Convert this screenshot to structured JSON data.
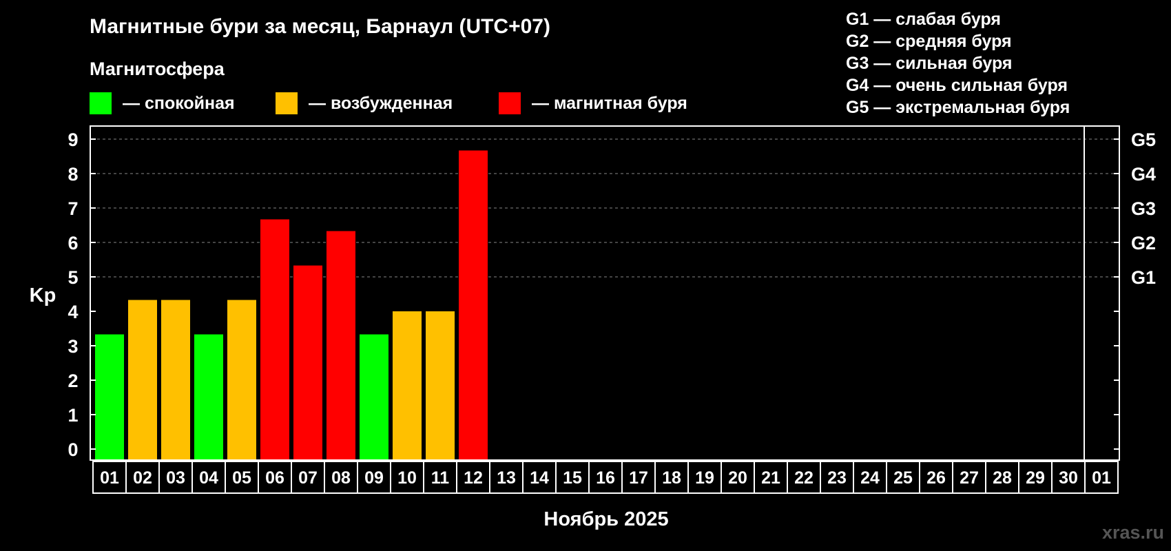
{
  "chart_data": {
    "type": "bar",
    "title": "Магнитные бури за месяц, Барнаул (UTC+07)",
    "xlabel": "Ноябрь 2025",
    "ylabel": "Kp",
    "ylim": [
      0,
      9
    ],
    "yticks": [
      "0",
      "1",
      "2",
      "3",
      "4",
      "5",
      "6",
      "7",
      "8",
      "9"
    ],
    "categories": [
      "01",
      "02",
      "03",
      "04",
      "05",
      "06",
      "07",
      "08",
      "09",
      "10",
      "11",
      "12",
      "13",
      "14",
      "15",
      "16",
      "17",
      "18",
      "19",
      "20",
      "21",
      "22",
      "23",
      "24",
      "25",
      "26",
      "27",
      "28",
      "29",
      "30",
      "01"
    ],
    "values": [
      3.33,
      4.33,
      4.33,
      3.33,
      4.33,
      6.67,
      5.33,
      6.33,
      3.33,
      4.0,
      4.0,
      8.67,
      null,
      null,
      null,
      null,
      null,
      null,
      null,
      null,
      null,
      null,
      null,
      null,
      null,
      null,
      null,
      null,
      null,
      null,
      null
    ],
    "bar_status": [
      "quiet",
      "excited",
      "excited",
      "quiet",
      "excited",
      "storm",
      "storm",
      "storm",
      "quiet",
      "excited",
      "excited",
      "storm",
      null,
      null,
      null,
      null,
      null,
      null,
      null,
      null,
      null,
      null,
      null,
      null,
      null,
      null,
      null,
      null,
      null,
      null,
      null
    ],
    "g_levels": [
      {
        "label": "G1",
        "kp": 5
      },
      {
        "label": "G2",
        "kp": 6
      },
      {
        "label": "G3",
        "kp": 7
      },
      {
        "label": "G4",
        "kp": 8
      },
      {
        "label": "G5",
        "kp": 9
      }
    ],
    "grid": true
  },
  "legend": {
    "header": "Магнитосфера",
    "items": [
      {
        "key": "quiet",
        "label": "— спокойная",
        "color": "#00ff00"
      },
      {
        "key": "excited",
        "label": "— возбужденная",
        "color": "#ffc000"
      },
      {
        "key": "storm",
        "label": "— магнитная буря",
        "color": "#ff0000"
      }
    ]
  },
  "g_scale": [
    "G1 — слабая буря",
    "G2 — средняя буря",
    "G3 — сильная буря",
    "G4 — очень сильная буря",
    "G5 — экстремальная буря"
  ],
  "watermark": "xras.ru"
}
